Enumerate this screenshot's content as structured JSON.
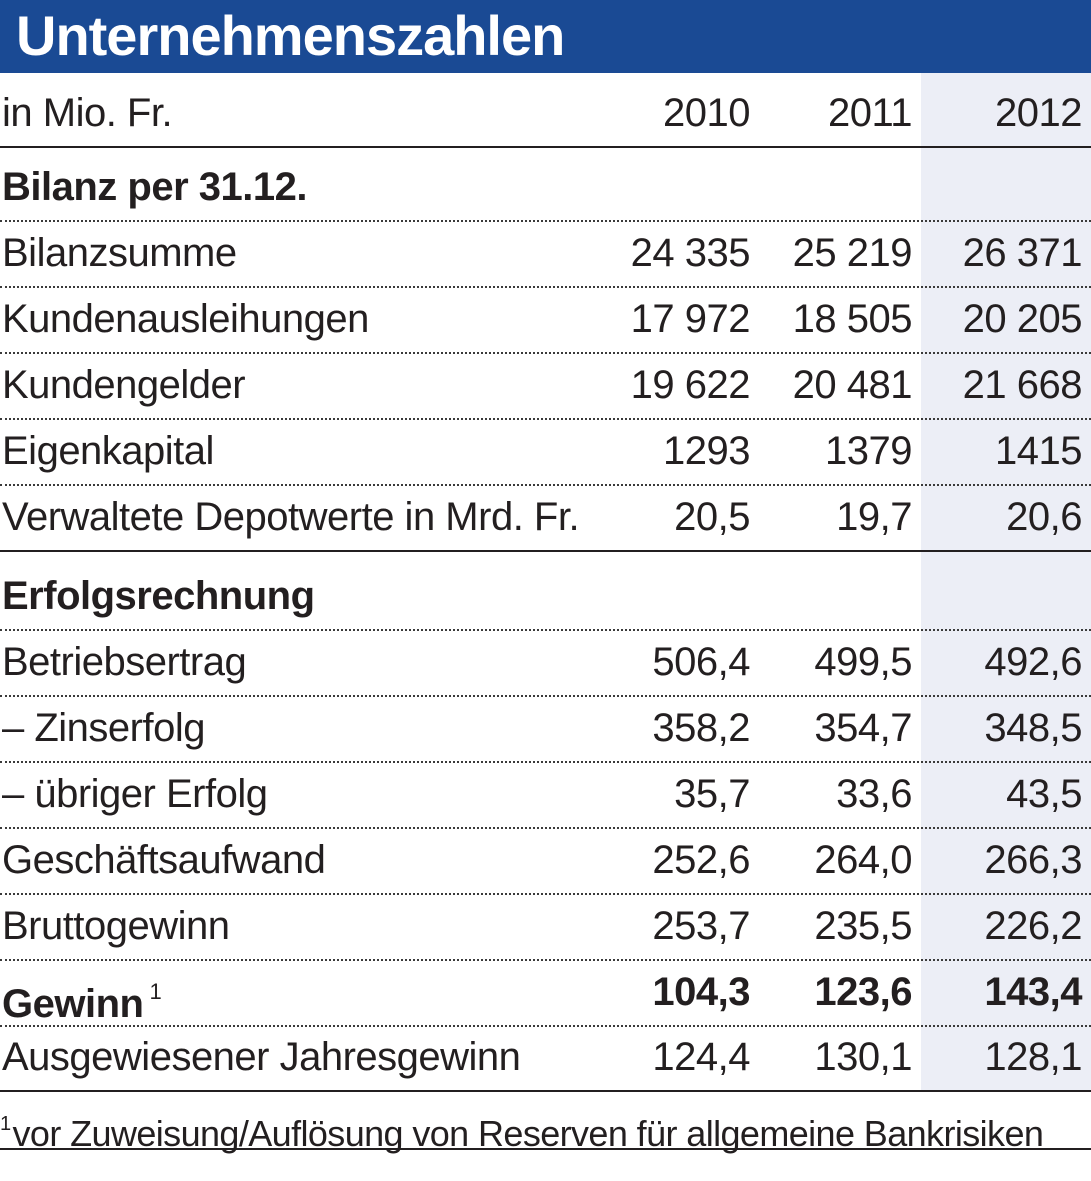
{
  "title": "Unternehmenszahlen",
  "header": {
    "unit": "in Mio. Fr.",
    "years": [
      "2010",
      "2011",
      "2012"
    ]
  },
  "colors": {
    "title_bar": "#1a4a94",
    "highlight_column": "#eceef6",
    "text": "#231f20"
  },
  "sections": {
    "bilanz": {
      "heading": "Bilanz per 31.12.",
      "rows": [
        {
          "label": "Bilanzsumme",
          "values": [
            "24 335",
            "25 219",
            "26 371"
          ]
        },
        {
          "label": "Kundenausleihungen",
          "values": [
            "17 972",
            "18 505",
            "20 205"
          ]
        },
        {
          "label": "Kundengelder",
          "values": [
            "19 622",
            "20 481",
            "21 668"
          ]
        },
        {
          "label": "Eigenkapital",
          "values": [
            "1293",
            "1379",
            "1415"
          ]
        },
        {
          "label": "Verwaltete Depotwerte in Mrd. Fr.",
          "values": [
            "20,5",
            "19,7",
            "20,6"
          ]
        }
      ]
    },
    "erfolg": {
      "heading": "Erfolgsrechnung",
      "rows": [
        {
          "label": "Betriebsertrag",
          "values": [
            "506,4",
            "499,5",
            "492,6"
          ]
        },
        {
          "label": "– Zinserfolg",
          "values": [
            "358,2",
            "354,7",
            "348,5"
          ]
        },
        {
          "label": "– übriger Erfolg",
          "values": [
            "35,7",
            "33,6",
            "43,5"
          ]
        },
        {
          "label": "Geschäftsaufwand",
          "values": [
            "252,6",
            "264,0",
            "266,3"
          ]
        },
        {
          "label": "Bruttogewinn",
          "values": [
            "253,7",
            "235,5",
            "226,2"
          ]
        },
        {
          "label": "Gewinn",
          "footnote_mark": "1",
          "values": [
            "104,3",
            "123,6",
            "143,4"
          ]
        },
        {
          "label": "Ausgewiesener Jahresgewinn",
          "values": [
            "124,4",
            "130,1",
            "128,1"
          ]
        }
      ]
    }
  },
  "footnote": {
    "mark": "1",
    "text": "vor Zuweisung/Auflösung von Reserven für allgemeine Bankrisiken"
  }
}
